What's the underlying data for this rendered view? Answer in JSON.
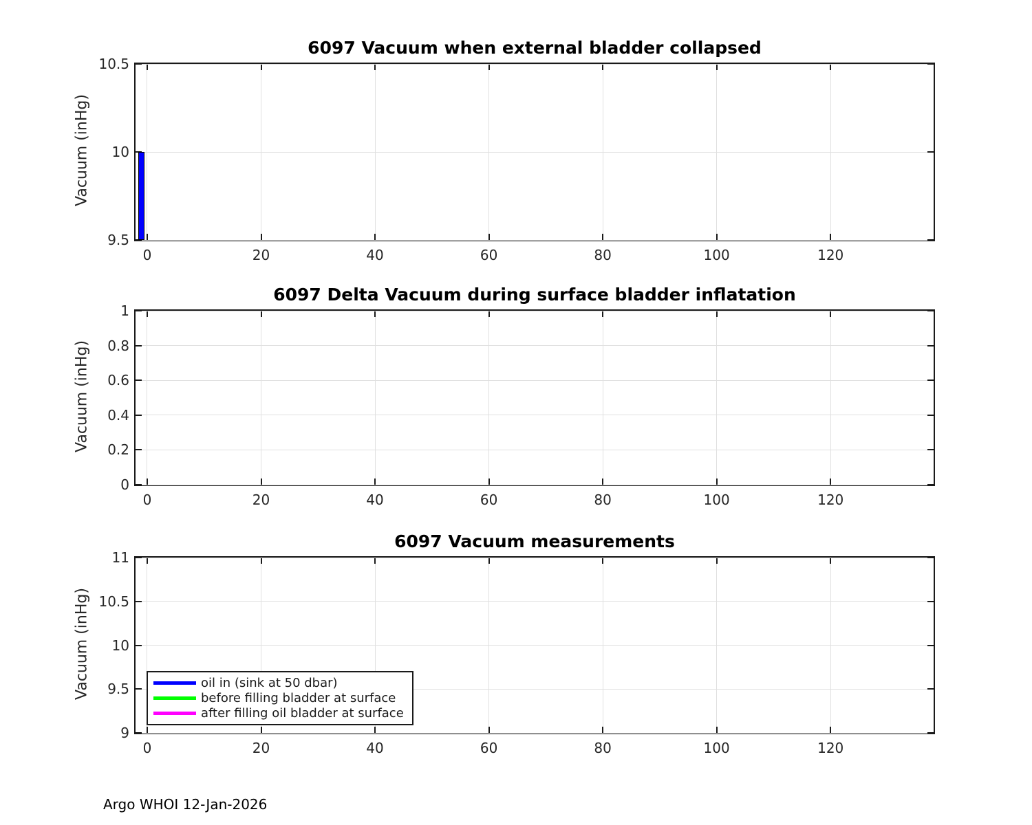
{
  "page": {
    "footer": "Argo WHOI 12-Jan-2026",
    "background": "#ffffff"
  },
  "colors": {
    "axis": "#1a1a1a",
    "grid": "#e0e0e0",
    "tick_text": "#262626",
    "title_text": "#000000",
    "bar_fill": "#0000ff",
    "bar_edge": "#000000",
    "series_blue": "#0000ff",
    "series_green": "#00ff00",
    "series_magenta": "#ff00ff"
  },
  "chart_data": [
    {
      "type": "bar",
      "title": "6097 Vacuum when external bladder collapsed",
      "xlabel": "",
      "ylabel": "Vacuum (inHg)",
      "xlim": [
        -2.05,
        138.1
      ],
      "ylim": [
        9.5,
        10.5
      ],
      "xticks": {
        "values": [
          0,
          20,
          40,
          60,
          80,
          100,
          120
        ],
        "labels": [
          "0",
          "20",
          "40",
          "60",
          "80",
          "100",
          "120"
        ]
      },
      "yticks": {
        "values": [
          9.5,
          10,
          10.5
        ],
        "labels": [
          "9.5",
          "10",
          "10.5"
        ]
      },
      "grid": true,
      "box": true,
      "tick_direction": "in",
      "bars": [
        {
          "x": -1,
          "value": 10,
          "width": 1.1,
          "baseline": 9.5,
          "fill": "#0000ff",
          "edge": "#000000"
        }
      ]
    },
    {
      "type": "bar",
      "title": "6097 Delta Vacuum during surface bladder inflatation",
      "xlabel": "",
      "ylabel": "Vacuum (inHg)",
      "xlim": [
        -2.05,
        138.1
      ],
      "ylim": [
        0,
        1
      ],
      "xticks": {
        "values": [
          0,
          20,
          40,
          60,
          80,
          100,
          120
        ],
        "labels": [
          "0",
          "20",
          "40",
          "60",
          "80",
          "100",
          "120"
        ]
      },
      "yticks": {
        "values": [
          0,
          0.2,
          0.4,
          0.6,
          0.8,
          1
        ],
        "labels": [
          "0",
          "0.2",
          "0.4",
          "0.6",
          "0.8",
          "1"
        ]
      },
      "grid": true,
      "box": true,
      "tick_direction": "in",
      "bars": []
    },
    {
      "type": "line",
      "title": "6097 Vacuum measurements",
      "xlabel": "",
      "ylabel": "Vacuum (inHg)",
      "xlim": [
        -2.05,
        138.1
      ],
      "ylim": [
        9,
        11
      ],
      "xticks": {
        "values": [
          0,
          20,
          40,
          60,
          80,
          100,
          120
        ],
        "labels": [
          "0",
          "20",
          "40",
          "60",
          "80",
          "100",
          "120"
        ]
      },
      "yticks": {
        "values": [
          9,
          9.5,
          10,
          10.5,
          11
        ],
        "labels": [
          "9",
          "9.5",
          "10",
          "10.5",
          "11"
        ]
      },
      "grid": true,
      "box": true,
      "tick_direction": "in",
      "legend_position": "lower-left",
      "series": [
        {
          "name": "oil in (sink at 50 dbar)",
          "color": "#0000ff",
          "x": [],
          "y": []
        },
        {
          "name": "before filling bladder at surface",
          "color": "#00ff00",
          "x": [],
          "y": []
        },
        {
          "name": "after filling oil bladder at surface",
          "color": "#ff00ff",
          "x": [],
          "y": []
        }
      ]
    }
  ]
}
